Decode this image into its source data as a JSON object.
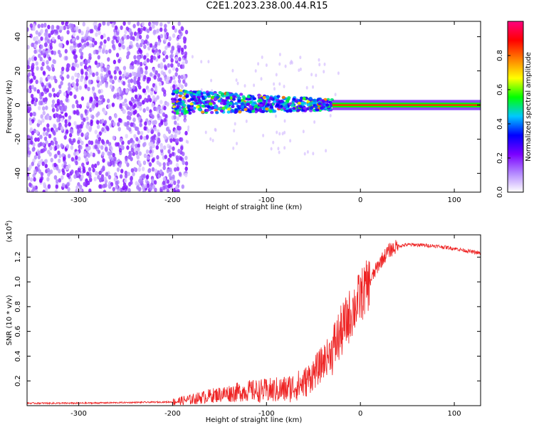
{
  "title": "C2E1.2023.238.00.44.R15",
  "chart_data": [
    {
      "type": "heatmap",
      "xlabel": "Height of straight line (km)",
      "ylabel": "Frequency (Hz)",
      "xlim": [
        -355,
        128
      ],
      "ylim": [
        -51,
        49
      ],
      "x_ticks": [
        -300,
        -200,
        -100,
        0,
        100
      ],
      "y_ticks": [
        -40,
        -20,
        0,
        20,
        40
      ],
      "colorbar": {
        "label": "Normalized spectral amplitude",
        "range": [
          0,
          1
        ],
        "ticks": [
          "0.0",
          "0.2",
          "0.4",
          "0.6",
          "0.8"
        ],
        "colors": [
          "#ffffff",
          "#b388ff",
          "#7a00ff",
          "#0000ff",
          "#00c8ff",
          "#00ff00",
          "#ffff00",
          "#ff8000",
          "#ff0000",
          "#ff0080"
        ]
      },
      "regions": [
        {
          "x_range": [
            -355,
            -185
          ],
          "freq_range": [
            -51,
            49
          ],
          "amplitude": 0.05
        },
        {
          "x_range": [
            -200,
            -30
          ],
          "freq_center": 2,
          "freq_halfwidth": 7,
          "amplitude": 0.3
        },
        {
          "x_range": [
            -30,
            128
          ],
          "freq_center": 0,
          "freq_halfwidth": 1,
          "amplitude": 0.9
        }
      ]
    },
    {
      "type": "line",
      "xlabel": "Height of straight line (km)",
      "ylabel": "SNR (10 * v/v)",
      "y_scale_note": "(x10",
      "y_scale_exp": "4",
      "y_scale_close": ")",
      "xlim": [
        -355,
        128
      ],
      "ylim": [
        0,
        1.38
      ],
      "x_ticks": [
        -300,
        -200,
        -100,
        0,
        100
      ],
      "y_ticks": [
        "0.2",
        "0.4",
        "0.6",
        "0.8",
        "1.0",
        "1.2"
      ],
      "series": [
        {
          "color": "#ee2222",
          "x": [
            -355,
            -300,
            -250,
            -200,
            -180,
            -160,
            -140,
            -120,
            -100,
            -80,
            -60,
            -45,
            -30,
            -20,
            -10,
            0,
            10,
            20,
            30,
            40,
            50,
            60,
            80,
            100,
            128
          ],
          "y": [
            0.02,
            0.02,
            0.025,
            0.03,
            0.05,
            0.08,
            0.1,
            0.12,
            0.12,
            0.13,
            0.18,
            0.3,
            0.45,
            0.6,
            0.75,
            0.88,
            1.0,
            1.15,
            1.25,
            1.29,
            1.3,
            1.3,
            1.29,
            1.27,
            1.23
          ]
        }
      ]
    }
  ]
}
